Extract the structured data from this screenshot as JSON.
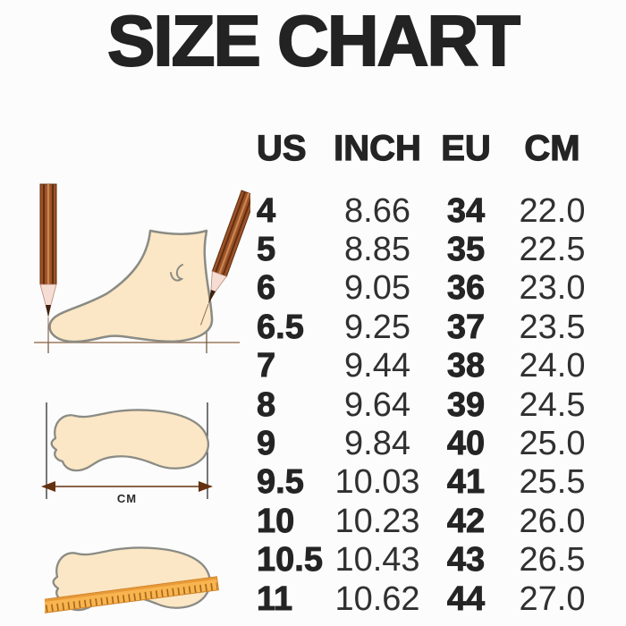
{
  "title": "SIZE CHART",
  "chart_data": {
    "type": "table",
    "title": "SIZE CHART",
    "columns": [
      "US",
      "INCH",
      "EU",
      "CM"
    ],
    "rows": [
      {
        "us": "4",
        "inch": "8.66",
        "eu": "34",
        "cm": "22.0"
      },
      {
        "us": "5",
        "inch": "8.85",
        "eu": "35",
        "cm": "22.5"
      },
      {
        "us": "6",
        "inch": "9.05",
        "eu": "36",
        "cm": "23.0"
      },
      {
        "us": "6.5",
        "inch": "9.25",
        "eu": "37",
        "cm": "23.5"
      },
      {
        "us": "7",
        "inch": "9.44",
        "eu": "38",
        "cm": "24.0"
      },
      {
        "us": "8",
        "inch": "9.64",
        "eu": "39",
        "cm": "24.5"
      },
      {
        "us": "9",
        "inch": "9.84",
        "eu": "40",
        "cm": "25.0"
      },
      {
        "us": "9.5",
        "inch": "10.03",
        "eu": "41",
        "cm": "25.5"
      },
      {
        "us": "10",
        "inch": "10.23",
        "eu": "42",
        "cm": "26.0"
      },
      {
        "us": "10.5",
        "inch": "10.43",
        "eu": "43",
        "cm": "26.5"
      },
      {
        "us": "11",
        "inch": "10.62",
        "eu": "44",
        "cm": "27.0"
      }
    ]
  },
  "illustrations": {
    "measure_label": "CM",
    "icons": [
      "pencil-icon",
      "foot-side-icon",
      "footprint-icon",
      "arrow-left-right-icon",
      "ruler-icon"
    ]
  },
  "colors": {
    "background": "#fcfcfc",
    "text": "#232323",
    "skin_fill": "#fbe7c5",
    "outline_gray": "#8b8b85",
    "pencil_brown": "#9c5228",
    "pencil_tip": "#f6ddd4",
    "pencil_lead": "#40220d",
    "guide_line": "#8d6b50",
    "arrow_brown": "#64300f",
    "ruler_orange": "#f8b44e",
    "ruler_tick": "#a5641c"
  }
}
